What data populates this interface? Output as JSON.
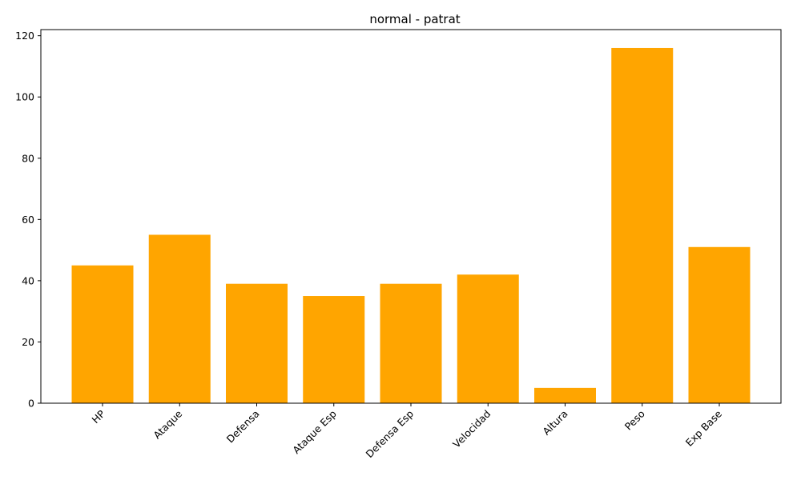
{
  "chart_data": {
    "type": "bar",
    "title": "normal - patrat",
    "xlabel": "",
    "ylabel": "",
    "categories": [
      "HP",
      "Ataque",
      "Defensa",
      "Ataque Esp",
      "Defensa Esp",
      "Velocidad",
      "Altura",
      "Peso",
      "Exp Base"
    ],
    "values": [
      45,
      55,
      39,
      35,
      39,
      42,
      5,
      116,
      51
    ],
    "ylim": [
      0,
      122
    ],
    "yticks": [
      0,
      20,
      40,
      60,
      80,
      100,
      120
    ],
    "bar_color": "#ffa500",
    "grid": false,
    "legend": "none",
    "xtick_rotation": 45
  }
}
